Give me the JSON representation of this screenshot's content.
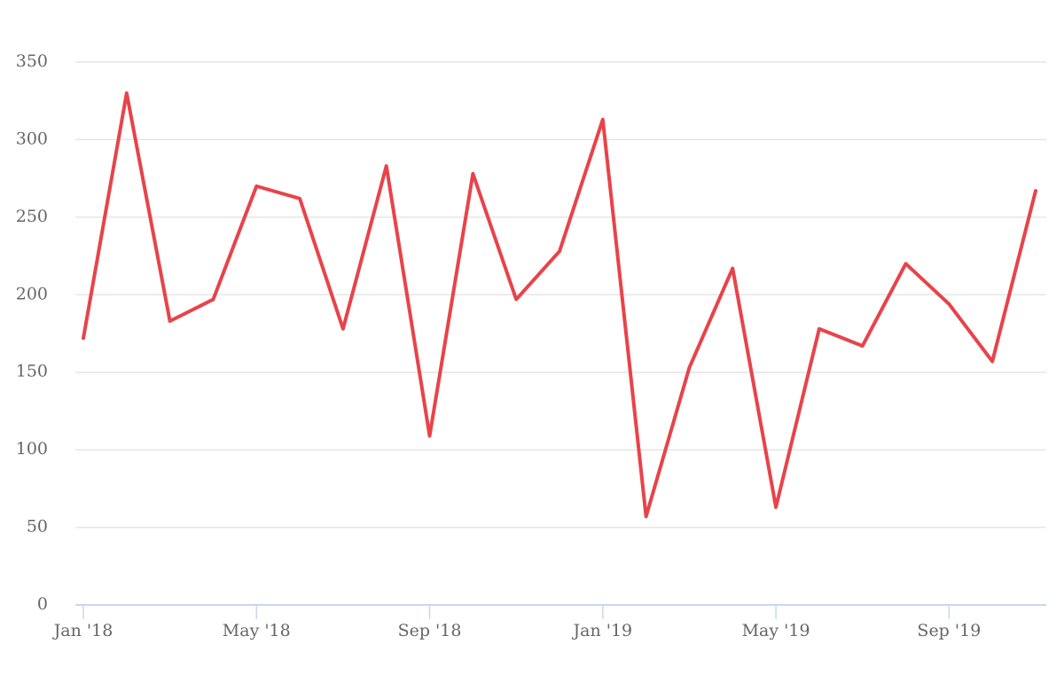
{
  "chart_data": {
    "type": "line",
    "categories": [
      "Jan '18",
      null,
      null,
      null,
      "May '18",
      null,
      null,
      null,
      "Sep '18",
      null,
      null,
      null,
      "Jan '19",
      null,
      null,
      null,
      "May '19",
      null,
      null,
      null,
      "Sep '19",
      null,
      null
    ],
    "series": [
      {
        "color": "#e8434a",
        "values": [
          172,
          330,
          183,
          197,
          270,
          262,
          178,
          283,
          109,
          278,
          197,
          228,
          313,
          57,
          153,
          217,
          63,
          178,
          167,
          220,
          194,
          157,
          267
        ]
      }
    ],
    "ylim": [
      0,
      350
    ],
    "yticks": [
      0,
      50,
      100,
      150,
      200,
      250,
      300,
      350
    ],
    "grid": true
  }
}
